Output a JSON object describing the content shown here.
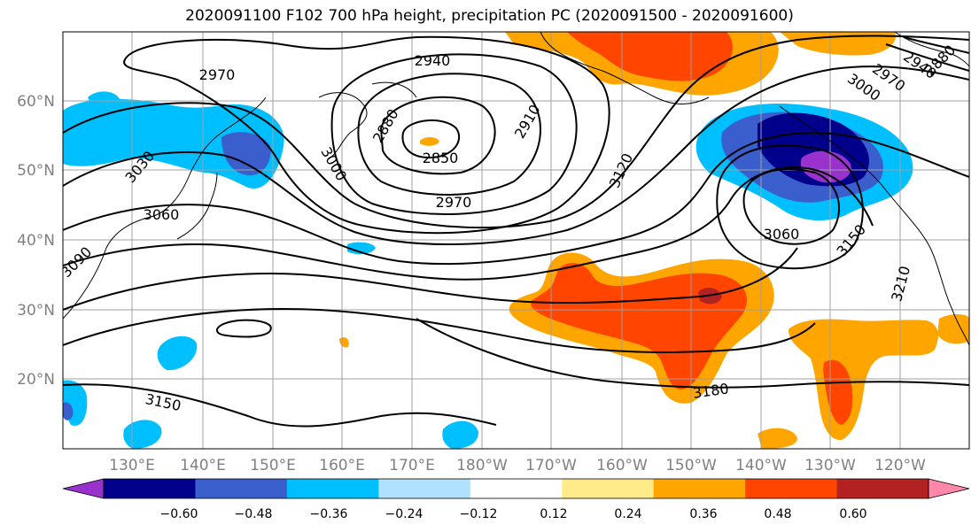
{
  "title": "2020091100 F102 700 hPa height, precipitation PC (2020091500 - 2020091600)",
  "latitude_labels": [
    "60°N",
    "50°N",
    "40°N",
    "30°N",
    "20°N"
  ],
  "longitude_labels": [
    "130°E",
    "140°E",
    "150°E",
    "160°E",
    "170°E",
    "180°W",
    "170°W",
    "160°W",
    "150°W",
    "140°W",
    "130°W",
    "120°W"
  ],
  "contour_labels": [
    "2970",
    "2940",
    "2880",
    "2910",
    "2850",
    "2970",
    "3000",
    "3030",
    "3060",
    "3090",
    "3120",
    "3060",
    "3150",
    "3210",
    "2880",
    "2940",
    "2970",
    "3000",
    "3150",
    "3180"
  ],
  "colorbar": {
    "tick_labels": [
      "−0.60",
      "−0.48",
      "−0.36",
      "−0.24",
      "−0.12",
      "0.12",
      "0.24",
      "0.36",
      "0.48",
      "0.60"
    ],
    "colors": [
      "#9932cc",
      "#00008b",
      "#3a5fcd",
      "#00bfff",
      "#b0e2ff",
      "#ffffff",
      "#ffeb8a",
      "#ffa500",
      "#ff4500",
      "#b22222",
      "#ff88aa"
    ]
  },
  "colors": {
    "gridline": "#a0a0a0",
    "contour": "#000000",
    "axis_label": "#808080"
  }
}
